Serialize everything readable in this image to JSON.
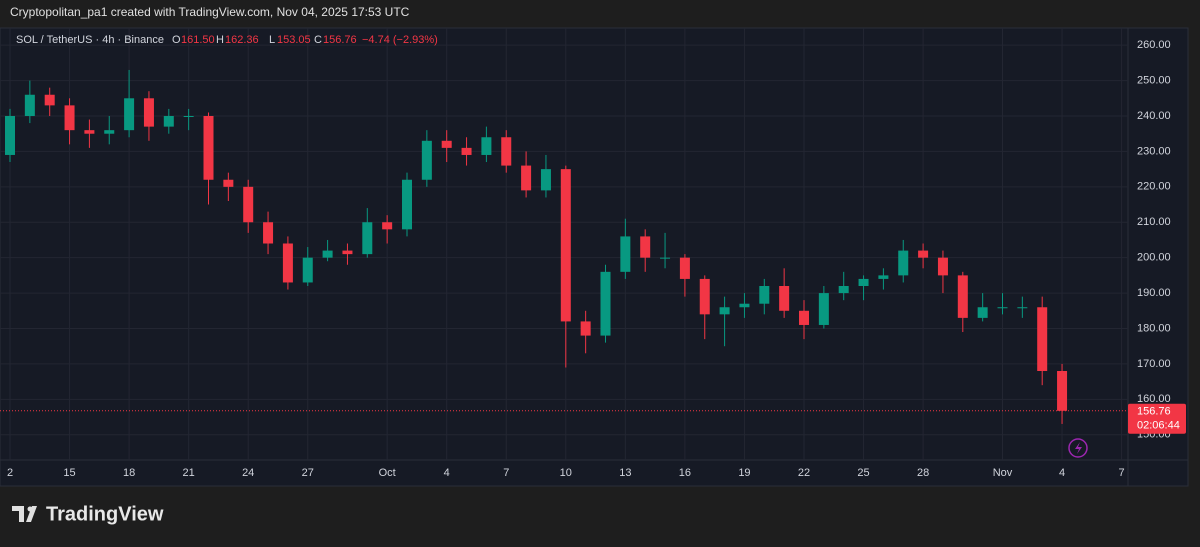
{
  "header": {
    "credit": "Cryptopolitan_pa1 created with TradingView.com, Nov 04, 2025 17:53 UTC"
  },
  "legend": {
    "symbol": "SOL / TetherUS · 4h · Binance",
    "o_label": "O",
    "o": "161.50",
    "h_label": "H",
    "h": "162.36",
    "l_label": "L",
    "l": "153.05",
    "c_label": "C",
    "c": "156.76",
    "change": "−4.74 (−2.93%)"
  },
  "price_tag": {
    "countdown": "02:06:44"
  },
  "logo": {
    "text": "TradingView"
  },
  "chart_data": {
    "type": "candlestick",
    "up_color": "#089981",
    "down_color": "#f23645",
    "grid": true,
    "last_price": 156.76,
    "last_price_label": "156.76",
    "categories": [
      "2",
      null,
      null,
      "15",
      null,
      null,
      "18",
      null,
      null,
      "21",
      null,
      null,
      "24",
      null,
      null,
      "27",
      null,
      null,
      null,
      "Oct",
      null,
      null,
      "4",
      null,
      null,
      "7",
      null,
      null,
      "10",
      null,
      null,
      "13",
      null,
      null,
      "16",
      null,
      null,
      "19",
      null,
      null,
      "22",
      null,
      null,
      "25",
      null,
      null,
      "28",
      null,
      null,
      null,
      "Nov",
      null,
      null,
      "4",
      null,
      null,
      "7"
    ],
    "open": [
      229,
      240,
      246,
      243,
      236,
      235,
      236,
      245,
      237,
      240,
      240,
      222,
      220,
      210,
      204,
      193,
      200,
      202,
      201,
      210,
      208,
      222,
      233,
      231,
      229,
      234,
      226,
      219,
      225,
      182,
      178,
      196,
      206,
      200,
      200,
      194,
      184,
      186,
      187,
      192,
      185,
      181,
      190,
      192,
      194,
      195,
      202,
      200,
      195,
      183,
      186,
      186,
      186,
      168,
      null,
      null,
      null
    ],
    "high": [
      242,
      250,
      248,
      245,
      239,
      240,
      253,
      247,
      242,
      242,
      241,
      224,
      222,
      213,
      206,
      203,
      205,
      204,
      214,
      212,
      224,
      236,
      236,
      234,
      237,
      236,
      230,
      229,
      226,
      185,
      198,
      211,
      208,
      207,
      201,
      195,
      189,
      190,
      194,
      197,
      188,
      192,
      196,
      195,
      197,
      205,
      204,
      202,
      196,
      190,
      190,
      189,
      189,
      170,
      null,
      null,
      null
    ],
    "low": [
      227,
      238,
      240,
      232,
      231,
      232,
      234,
      233,
      235,
      236,
      215,
      216,
      207,
      201,
      191,
      192,
      199,
      198,
      200,
      204,
      206,
      220,
      227,
      226,
      227,
      224,
      217,
      217,
      169,
      173,
      176,
      194,
      196,
      197,
      189,
      177,
      175,
      183,
      184,
      183,
      177,
      180,
      188,
      188,
      191,
      193,
      197,
      190,
      179,
      182,
      184,
      183,
      164,
      153.05,
      null,
      null,
      null
    ],
    "close": [
      240,
      246,
      243,
      236,
      235,
      236,
      245,
      237,
      240,
      240,
      222,
      220,
      210,
      204,
      193,
      200,
      202,
      201,
      210,
      208,
      222,
      233,
      231,
      229,
      234,
      226,
      219,
      225,
      182,
      178,
      196,
      206,
      200,
      200,
      194,
      184,
      186,
      187,
      192,
      185,
      181,
      190,
      192,
      194,
      195,
      202,
      200,
      195,
      183,
      186,
      186,
      186,
      168,
      156.76,
      null,
      null,
      null
    ],
    "ylim": [
      144,
      264
    ],
    "yticks": [
      {
        "value": 150,
        "label": "150.00"
      },
      {
        "value": 160,
        "label": "160.00"
      },
      {
        "value": 170,
        "label": "170.00"
      },
      {
        "value": 180,
        "label": "180.00"
      },
      {
        "value": 190,
        "label": "190.00"
      },
      {
        "value": 200,
        "label": "200.00"
      },
      {
        "value": 210,
        "label": "210.00"
      },
      {
        "value": 220,
        "label": "220.00"
      },
      {
        "value": 230,
        "label": "230.00"
      },
      {
        "value": 240,
        "label": "240.00"
      },
      {
        "value": 250,
        "label": "250.00"
      },
      {
        "value": 260,
        "label": "260.00"
      }
    ]
  }
}
